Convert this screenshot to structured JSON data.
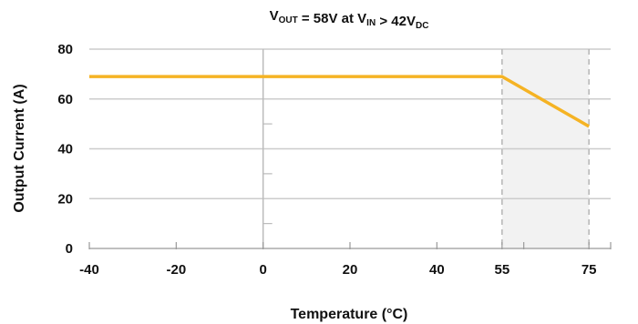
{
  "chart_data": {
    "type": "line",
    "title": {
      "parts": [
        {
          "text": "V",
          "sub": false
        },
        {
          "text": "OUT",
          "sub": true
        },
        {
          "text": " = 58V at V",
          "sub": false
        },
        {
          "text": "IN",
          "sub": true
        },
        {
          "text": " > 42V",
          "sub": false
        },
        {
          "text": "DC",
          "sub": true
        }
      ]
    },
    "xlabel": "Temperature (°C)",
    "ylabel": "Output Current (A)",
    "x_ticks": [
      -40,
      -20,
      0,
      20,
      40,
      55,
      75
    ],
    "y_ticks": [
      0,
      20,
      40,
      60,
      80
    ],
    "xlim": [
      -40,
      80
    ],
    "ylim": [
      0,
      80
    ],
    "grid": "horizontal",
    "vertical_reference_lines": [
      55,
      75
    ],
    "shaded_region": [
      55,
      75
    ],
    "series": [
      {
        "x": [
          -40,
          55,
          75
        ],
        "y": [
          69,
          69,
          49
        ],
        "color": "#f5b324"
      }
    ],
    "colors": {
      "line": "#f5b324",
      "grid": "#cccccc",
      "zero_line": "#bbbbbb",
      "ref_line": "#b5b5b5",
      "shade": "#f2f2f2",
      "axis": "#999999"
    }
  }
}
